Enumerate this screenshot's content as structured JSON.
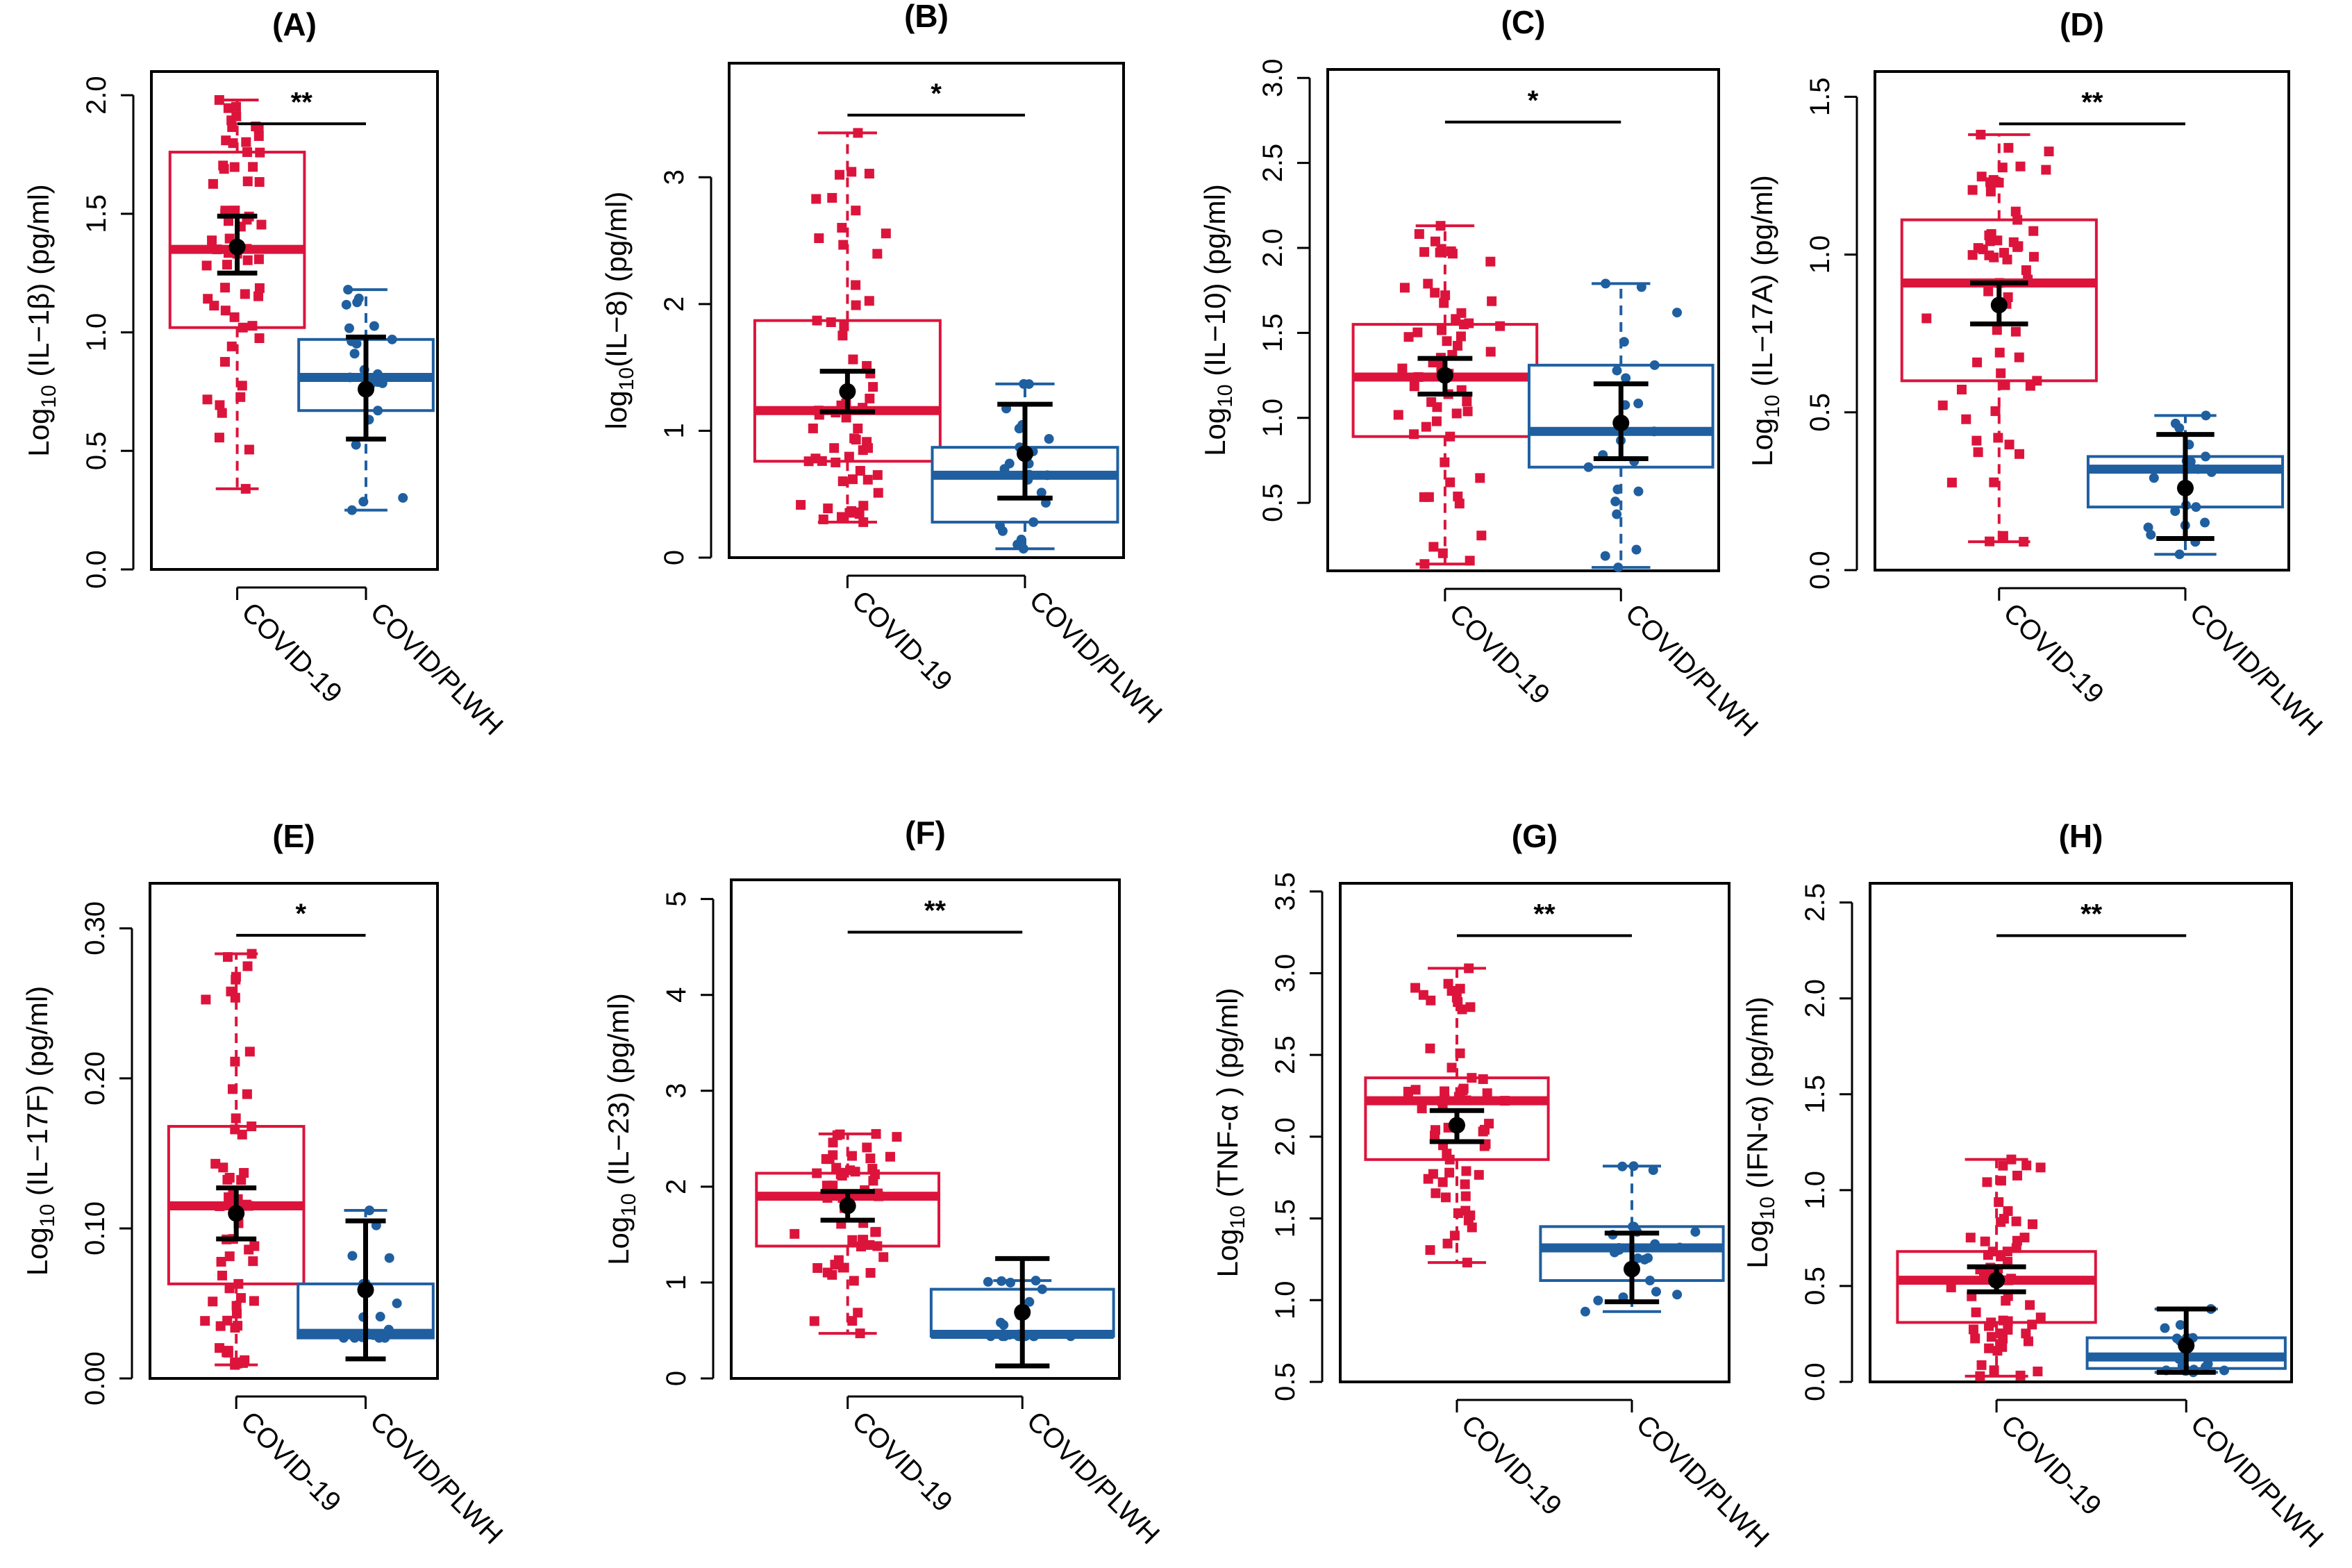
{
  "figure": {
    "group_colors": {
      "COVID-19": "#DC143C",
      "COVID/PLWH": "#1F5FA0"
    },
    "mean_color": "#000000"
  },
  "chart_data": [
    {
      "panel": "(A)",
      "type": "boxplot",
      "ylabel_prefix": "Log",
      "ylabel_sub": "10",
      "ylabel_suffix": " (IL−1β) (pg/ml)",
      "categories": [
        "COVID-19",
        "COVID/PLWH"
      ],
      "ylim": [
        0,
        2.1
      ],
      "yticks": [
        "0.0",
        "0.5",
        "1.0",
        "1.5",
        "2.0"
      ],
      "ytick_values": [
        0,
        0.5,
        1,
        1.5,
        2
      ],
      "significance": "**",
      "groups": [
        {
          "name": "COVID-19",
          "box": {
            "q1": 1.02,
            "median": 1.35,
            "q3": 1.76,
            "whisker_low": 0.34,
            "whisker_high": 1.98
          },
          "mean": 1.36,
          "ci": [
            1.25,
            1.49
          ]
        },
        {
          "name": "COVID/PLWH",
          "box": {
            "q1": 0.67,
            "median": 0.81,
            "q3": 0.97,
            "whisker_low": 0.25,
            "whisker_high": 1.18
          },
          "mean": 0.76,
          "ci": [
            0.55,
            0.98
          ]
        }
      ]
    },
    {
      "panel": "(B)",
      "type": "boxplot",
      "ylabel_prefix": "log",
      "ylabel_sub": "10",
      "ylabel_suffix": "(IL−8) (pg/ml)",
      "categories": [
        "COVID-19",
        "COVID/PLWH"
      ],
      "ylim": [
        0,
        3.9
      ],
      "yticks": [
        "0",
        "1",
        "2",
        "3"
      ],
      "ytick_values": [
        0,
        1,
        2,
        3
      ],
      "significance": "*",
      "groups": [
        {
          "name": "COVID-19",
          "box": {
            "q1": 0.76,
            "median": 1.16,
            "q3": 1.87,
            "whisker_low": 0.28,
            "whisker_high": 3.35
          },
          "mean": 1.31,
          "ci": [
            1.15,
            1.47
          ]
        },
        {
          "name": "COVID/PLWH",
          "box": {
            "q1": 0.28,
            "median": 0.65,
            "q3": 0.87,
            "whisker_low": 0.07,
            "whisker_high": 1.37
          },
          "mean": 0.82,
          "ci": [
            0.47,
            1.21
          ]
        }
      ]
    },
    {
      "panel": "(C)",
      "type": "boxplot",
      "ylabel_prefix": "Log",
      "ylabel_sub": "10",
      "ylabel_suffix": " (IL−10) (pg/ml)",
      "categories": [
        "COVID-19",
        "COVID/PLWH"
      ],
      "ylim": [
        0.1,
        3.05
      ],
      "yticks": [
        "0.5",
        "1.0",
        "1.5",
        "2.0",
        "2.5",
        "3.0"
      ],
      "ytick_values": [
        0.5,
        1,
        1.5,
        2,
        2.5,
        3
      ],
      "significance": "*",
      "groups": [
        {
          "name": "COVID-19",
          "box": {
            "q1": 0.89,
            "median": 1.24,
            "q3": 1.55,
            "whisker_low": 0.14,
            "whisker_high": 2.13
          },
          "mean": 1.25,
          "ci": [
            1.14,
            1.35
          ]
        },
        {
          "name": "COVID/PLWH",
          "box": {
            "q1": 0.71,
            "median": 0.92,
            "q3": 1.31,
            "whisker_low": 0.12,
            "whisker_high": 1.79
          },
          "mean": 0.97,
          "ci": [
            0.76,
            1.2
          ]
        }
      ]
    },
    {
      "panel": "(D)",
      "type": "boxplot",
      "ylabel_prefix": "Log",
      "ylabel_sub": "10",
      "ylabel_suffix": " (IL−17A) (pg/ml)",
      "categories": [
        "COVID-19",
        "COVID/PLWH"
      ],
      "ylim": [
        0,
        1.58
      ],
      "yticks": [
        "0.0",
        "0.5",
        "1.0",
        "1.5"
      ],
      "ytick_values": [
        0,
        0.5,
        1,
        1.5
      ],
      "significance": "**",
      "groups": [
        {
          "name": "COVID-19",
          "box": {
            "q1": 0.6,
            "median": 0.91,
            "q3": 1.11,
            "whisker_low": 0.09,
            "whisker_high": 1.38
          },
          "mean": 0.84,
          "ci": [
            0.78,
            0.91
          ]
        },
        {
          "name": "COVID/PLWH",
          "box": {
            "q1": 0.2,
            "median": 0.32,
            "q3": 0.36,
            "whisker_low": 0.05,
            "whisker_high": 0.49
          },
          "mean": 0.26,
          "ci": [
            0.1,
            0.43
          ]
        }
      ]
    },
    {
      "panel": "(E)",
      "type": "boxplot",
      "ylabel_prefix": "Log",
      "ylabel_sub": "10",
      "ylabel_suffix": " (IL−17F) (pg/ml)",
      "categories": [
        "COVID-19",
        "COVID/PLWH"
      ],
      "ylim": [
        0,
        0.33
      ],
      "yticks": [
        "0.00",
        "0.10",
        "0.20",
        "0.30"
      ],
      "ytick_values": [
        0,
        0.1,
        0.2,
        0.3
      ],
      "significance": "*",
      "groups": [
        {
          "name": "COVID-19",
          "box": {
            "q1": 0.063,
            "median": 0.115,
            "q3": 0.168,
            "whisker_low": 0.009,
            "whisker_high": 0.283
          },
          "mean": 0.11,
          "ci": [
            0.093,
            0.127
          ]
        },
        {
          "name": "COVID/PLWH",
          "box": {
            "q1": 0.027,
            "median": 0.03,
            "q3": 0.063,
            "whisker_low": 0.027,
            "whisker_high": 0.112
          },
          "mean": 0.059,
          "ci": [
            0.013,
            0.105
          ]
        }
      ]
    },
    {
      "panel": "(F)",
      "type": "boxplot",
      "ylabel_prefix": "Log",
      "ylabel_sub": "10",
      "ylabel_suffix": " (IL−23) (pg/ml)",
      "categories": [
        "COVID-19",
        "COVID/PLWH"
      ],
      "ylim": [
        0,
        5.2
      ],
      "yticks": [
        "0",
        "1",
        "2",
        "3",
        "4",
        "5"
      ],
      "ytick_values": [
        0,
        1,
        2,
        3,
        4,
        5
      ],
      "significance": "**",
      "groups": [
        {
          "name": "COVID-19",
          "box": {
            "q1": 1.38,
            "median": 1.9,
            "q3": 2.14,
            "whisker_low": 0.47,
            "whisker_high": 2.55
          },
          "mean": 1.8,
          "ci": [
            1.65,
            1.95
          ]
        },
        {
          "name": "COVID/PLWH",
          "box": {
            "q1": 0.44,
            "median": 0.46,
            "q3": 0.93,
            "whisker_low": 0.44,
            "whisker_high": 1.02
          },
          "mean": 0.69,
          "ci": [
            0.13,
            1.25
          ]
        }
      ]
    },
    {
      "panel": "(G)",
      "type": "boxplot",
      "ylabel_prefix": "Log",
      "ylabel_sub": "10",
      "ylabel_suffix": " (TNF-α ) (pg/ml)",
      "categories": [
        "COVID-19",
        "COVID/PLWH"
      ],
      "ylim": [
        0.5,
        3.55
      ],
      "yticks": [
        "0.5",
        "1.0",
        "1.5",
        "2.0",
        "2.5",
        "3.0",
        "3.5"
      ],
      "ytick_values": [
        0.5,
        1,
        1.5,
        2,
        2.5,
        3,
        3.5
      ],
      "significance": "**",
      "groups": [
        {
          "name": "COVID-19",
          "box": {
            "q1": 1.86,
            "median": 2.22,
            "q3": 2.36,
            "whisker_low": 1.23,
            "whisker_high": 3.03
          },
          "mean": 2.07,
          "ci": [
            1.97,
            2.16
          ]
        },
        {
          "name": "COVID/PLWH",
          "box": {
            "q1": 1.12,
            "median": 1.32,
            "q3": 1.45,
            "whisker_low": 0.93,
            "whisker_high": 1.82
          },
          "mean": 1.19,
          "ci": [
            0.99,
            1.41
          ]
        }
      ]
    },
    {
      "panel": "(H)",
      "type": "boxplot",
      "ylabel_prefix": "Log",
      "ylabel_sub": "10",
      "ylabel_suffix": " (IFN-α) (pg/ml)",
      "categories": [
        "COVID-19",
        "COVID/PLWH"
      ],
      "ylim": [
        0,
        2.6
      ],
      "yticks": [
        "0.0",
        "0.5",
        "1.0",
        "1.5",
        "2.0",
        "2.5"
      ],
      "ytick_values": [
        0,
        0.5,
        1,
        1.5,
        2,
        2.5
      ],
      "significance": "**",
      "groups": [
        {
          "name": "COVID-19",
          "box": {
            "q1": 0.31,
            "median": 0.53,
            "q3": 0.68,
            "whisker_low": 0.03,
            "whisker_high": 1.16
          },
          "mean": 0.53,
          "ci": [
            0.47,
            0.6
          ]
        },
        {
          "name": "COVID/PLWH",
          "box": {
            "q1": 0.07,
            "median": 0.13,
            "q3": 0.23,
            "whisker_low": 0.05,
            "whisker_high": 0.38
          },
          "mean": 0.19,
          "ci": [
            0.05,
            0.38
          ]
        }
      ]
    }
  ]
}
